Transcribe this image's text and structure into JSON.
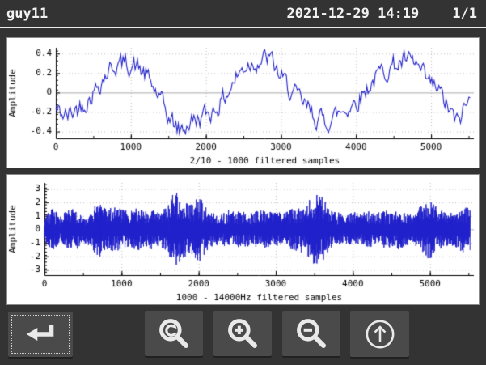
{
  "header": {
    "title": "guy11",
    "datetime": "2021-12-29 14:19",
    "page_indicator": "1/1"
  },
  "colors": {
    "background": "#333333",
    "panel_background": "#ffffff",
    "signal": "#2222cc",
    "grid": "#bcbcbc",
    "zero_line": "#ababab",
    "axis": "#000000",
    "button_background": "#4a4a4a",
    "icon": "#e9e9e9",
    "header_text": "#f2f2f2"
  },
  "toolbar": {
    "buttons": [
      {
        "name": "return",
        "icon": "return-arrow-icon",
        "focused": true
      },
      {
        "name": "zoom-reset",
        "icon": "zoom-reset-icon",
        "focused": false
      },
      {
        "name": "zoom-in",
        "icon": "zoom-in-icon",
        "focused": false
      },
      {
        "name": "zoom-out",
        "icon": "zoom-out-icon",
        "focused": false
      },
      {
        "name": "page-up",
        "icon": "up-arrow-icon",
        "focused": false
      }
    ]
  },
  "chart_data": [
    {
      "type": "line",
      "title": "",
      "xlabel": "2/10 - 1000 filtered samples",
      "ylabel": "Amplitude",
      "xlim": [
        0,
        5570
      ],
      "ylim": [
        -0.47,
        0.46
      ],
      "xticks": [
        0,
        1000,
        2000,
        3000,
        4000,
        5000
      ],
      "yticks": [
        -0.4,
        -0.2,
        0,
        0.2,
        0.4
      ],
      "x_minor_step": 500,
      "y_minor_step": 0.05,
      "grid": true,
      "legend": "none",
      "series": [
        {
          "name": "2/10 - 1000 filtered samples",
          "color": "#2222cc",
          "render": "noisy-trend",
          "noise_amplitude": 0.09,
          "trend_points": [
            [
              0,
              -0.18
            ],
            [
              150,
              -0.25
            ],
            [
              300,
              -0.15
            ],
            [
              450,
              -0.05
            ],
            [
              600,
              0.12
            ],
            [
              750,
              0.27
            ],
            [
              900,
              0.3
            ],
            [
              1050,
              0.28
            ],
            [
              1200,
              0.18
            ],
            [
              1350,
              -0.02
            ],
            [
              1500,
              -0.25
            ],
            [
              1650,
              -0.4
            ],
            [
              1800,
              -0.3
            ],
            [
              1950,
              -0.25
            ],
            [
              2100,
              -0.18
            ],
            [
              2250,
              -0.05
            ],
            [
              2400,
              0.15
            ],
            [
              2550,
              0.3
            ],
            [
              2700,
              0.33
            ],
            [
              2850,
              0.35
            ],
            [
              3000,
              0.15
            ],
            [
              3150,
              0.0
            ],
            [
              3300,
              -0.12
            ],
            [
              3450,
              -0.25
            ],
            [
              3600,
              -0.3
            ],
            [
              3750,
              -0.22
            ],
            [
              3900,
              -0.15
            ],
            [
              4050,
              -0.05
            ],
            [
              4200,
              0.1
            ],
            [
              4350,
              0.22
            ],
            [
              4500,
              0.28
            ],
            [
              4650,
              0.32
            ],
            [
              4800,
              0.28
            ],
            [
              4950,
              0.1
            ],
            [
              5100,
              0.02
            ],
            [
              5250,
              -0.2
            ],
            [
              5350,
              -0.32
            ],
            [
              5450,
              -0.15
            ],
            [
              5520,
              -0.08
            ]
          ]
        }
      ]
    },
    {
      "type": "line",
      "title": "",
      "xlabel": "1000 - 14000Hz filtered samples",
      "ylabel": "Amplitude",
      "xlim": [
        0,
        5570
      ],
      "ylim": [
        -3.4,
        3.45
      ],
      "xticks": [
        0,
        1000,
        2000,
        3000,
        4000,
        5000
      ],
      "yticks": [
        -3,
        -2,
        -1,
        0,
        1,
        2,
        3
      ],
      "x_minor_step": 500,
      "y_minor_step": 0.25,
      "grid": true,
      "legend": "none",
      "series": [
        {
          "name": "1000 - 14000Hz filtered samples",
          "color": "#2222cc",
          "render": "noise-envelope",
          "base_level": 0.3,
          "envelope_points": [
            [
              0,
              0.9
            ],
            [
              100,
              1.6
            ],
            [
              200,
              1.0
            ],
            [
              300,
              1.4
            ],
            [
              400,
              1.6
            ],
            [
              500,
              1.0
            ],
            [
              600,
              1.3
            ],
            [
              700,
              2.2
            ],
            [
              800,
              1.5
            ],
            [
              900,
              1.7
            ],
            [
              1000,
              1.5
            ],
            [
              1100,
              1.4
            ],
            [
              1200,
              1.6
            ],
            [
              1300,
              1.3
            ],
            [
              1400,
              1.6
            ],
            [
              1500,
              1.2
            ],
            [
              1600,
              1.9
            ],
            [
              1700,
              3.0
            ],
            [
              1800,
              2.2
            ],
            [
              1900,
              1.8
            ],
            [
              2000,
              2.6
            ],
            [
              2100,
              1.6
            ],
            [
              2200,
              1.2
            ],
            [
              2300,
              1.1
            ],
            [
              2400,
              1.5
            ],
            [
              2500,
              1.3
            ],
            [
              2600,
              1.4
            ],
            [
              2700,
              1.2
            ],
            [
              2800,
              1.5
            ],
            [
              2900,
              1.3
            ],
            [
              3000,
              1.4
            ],
            [
              3100,
              1.2
            ],
            [
              3200,
              1.5
            ],
            [
              3300,
              1.7
            ],
            [
              3400,
              1.9
            ],
            [
              3500,
              2.8
            ],
            [
              3600,
              2.4
            ],
            [
              3700,
              1.6
            ],
            [
              3800,
              1.3
            ],
            [
              3900,
              1.1
            ],
            [
              4000,
              1.3
            ],
            [
              4100,
              1.2
            ],
            [
              4200,
              1.4
            ],
            [
              4300,
              1.2
            ],
            [
              4400,
              1.5
            ],
            [
              4500,
              1.3
            ],
            [
              4600,
              1.5
            ],
            [
              4700,
              1.2
            ],
            [
              4800,
              1.1
            ],
            [
              4900,
              2.0
            ],
            [
              5000,
              2.2
            ],
            [
              5100,
              1.6
            ],
            [
              5200,
              1.4
            ],
            [
              5300,
              1.3
            ],
            [
              5400,
              1.8
            ],
            [
              5520,
              1.6
            ]
          ]
        }
      ]
    }
  ]
}
